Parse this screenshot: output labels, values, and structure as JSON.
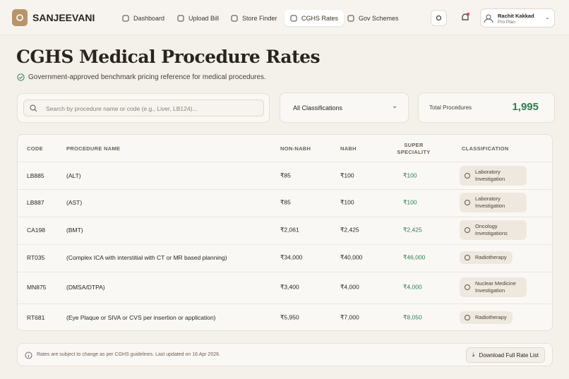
{
  "header": {
    "brand": "SANJEEVANI",
    "nav": [
      "Dashboard",
      "Upload Bill",
      "Store Finder",
      "CGHS Rates",
      "Gov Schemes"
    ],
    "active_nav": 3,
    "user": {
      "name": "Rachit Kakkad",
      "plan": "Pro Plan"
    }
  },
  "page": {
    "title": "CGHS Medical Procedure Rates",
    "subtitle": "Government-approved benchmark pricing reference for medical procedures."
  },
  "filters": {
    "search_placeholder": "Search by procedure name or code (e.g., Liver, LB124)...",
    "classification": "All Classifications",
    "total_label": "Total Procedures",
    "total_value": "1,995"
  },
  "table": {
    "columns": [
      "CODE",
      "PROCEDURE NAME",
      "NON-NABH",
      "NABH",
      "SUPER SPECIALITY",
      "CLASSIFICATION"
    ],
    "rows": [
      [
        "LB885",
        "(ALT)",
        "₹85",
        "₹100",
        "₹100",
        "Laboratory Investigation"
      ],
      [
        "LB887",
        "(AST)",
        "₹85",
        "₹100",
        "₹100",
        "Laboratory Investigation"
      ],
      [
        "CA198",
        "(BMT)",
        "₹2,061",
        "₹2,425",
        "₹2,425",
        "Oncology Investigations"
      ],
      [
        "RT035",
        "(Complex ICA with interstitial with CT or MR based planning)",
        "₹34,000",
        "₹40,000",
        "₹46,000",
        "Radiotherapy"
      ],
      [
        "MN875",
        "(DMSA/DTPA)",
        "₹3,400",
        "₹4,000",
        "₹4,000",
        "Nuclear Medicine Investigation"
      ],
      [
        "RT681",
        "(Eye Plaque or SIVA or CVS per insertion or application)",
        "₹5,950",
        "₹7,000",
        "₹8,050",
        "Radiotherapy"
      ]
    ]
  },
  "footer": {
    "note": "Rates are subject to change as per CGHS guidelines. Last updated on 16 Apr 2026.",
    "download": "Download Full Rate List"
  }
}
